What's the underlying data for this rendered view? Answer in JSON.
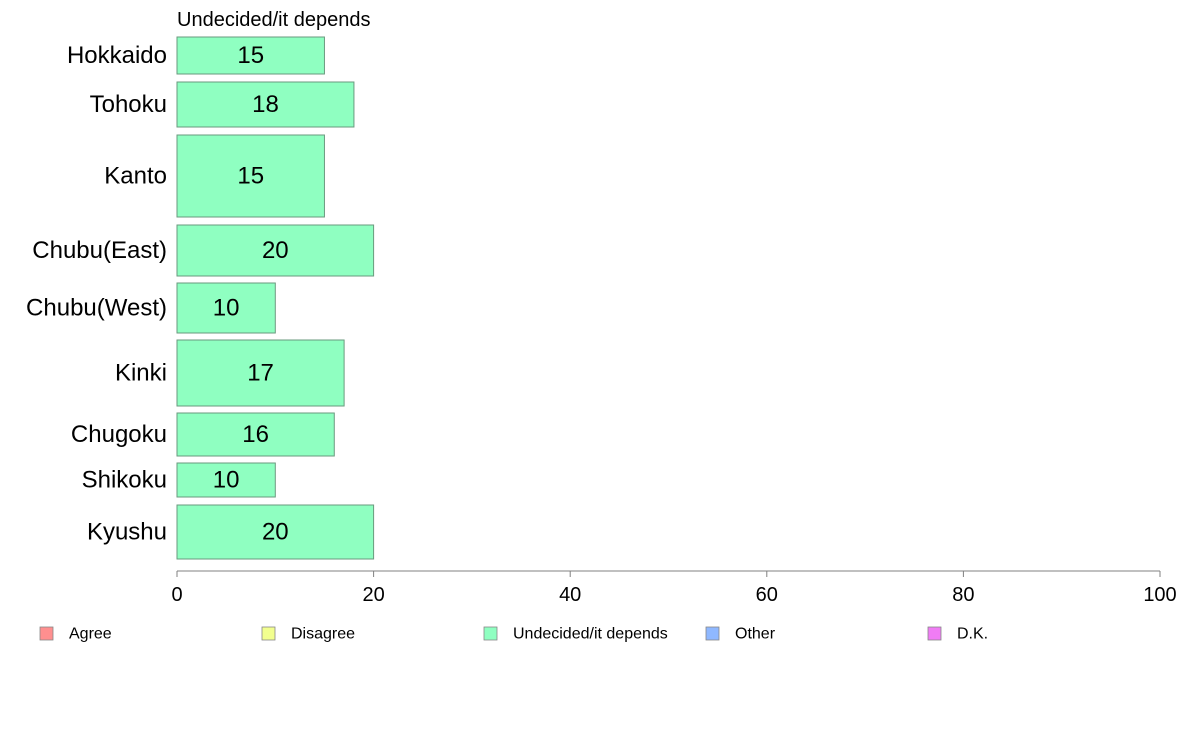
{
  "chart_data": {
    "type": "bar",
    "orientation": "horizontal",
    "title": "Undecided/it depends",
    "categories": [
      "Hokkaido",
      "Tohoku",
      "Kanto",
      "Chubu(East)",
      "Chubu(West)",
      "Kinki",
      "Chugoku",
      "Shikoku",
      "Kyushu"
    ],
    "series": [
      {
        "name": "Undecided/it depends",
        "values": [
          15,
          18,
          15,
          20,
          10,
          17,
          16,
          10,
          20
        ]
      }
    ],
    "bar_color": "#8fffc1",
    "xlim": [
      0,
      100
    ],
    "xticks": [
      0,
      20,
      40,
      60,
      80,
      100
    ],
    "xlabel": "",
    "ylabel": "",
    "grid": false,
    "legend": {
      "placement": "bottom",
      "items": [
        {
          "label": "Agree",
          "color": "#ff8f8f"
        },
        {
          "label": "Disagree",
          "color": "#f2ff8f"
        },
        {
          "label": "Undecided/it depends",
          "color": "#8fffc1"
        },
        {
          "label": "Other",
          "color": "#8fb8ff"
        },
        {
          "label": "D.K.",
          "color": "#f07cf5"
        }
      ]
    }
  }
}
